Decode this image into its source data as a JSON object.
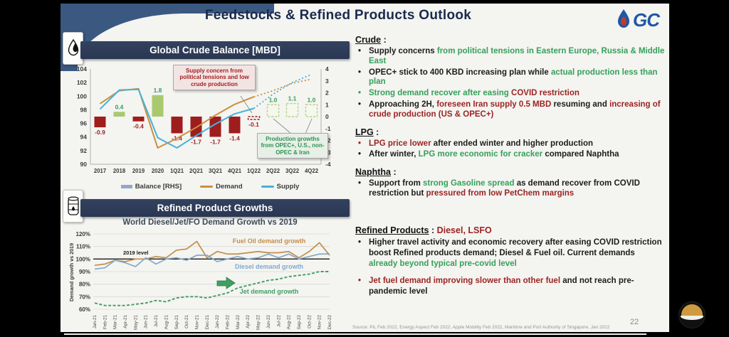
{
  "slide": {
    "title": "Feedstocks & Refined Products Outlook",
    "logo_text": "GC",
    "page_number": "22",
    "source_text": "Source: PiL Feb 2022, Energy Aspect Feb 2022, Apple Mobility Feb 2022, Maritime and Port Authority of Singapore, Jan 2022"
  },
  "colors": {
    "navy": "#2d3a57",
    "red_text": "#9b2422",
    "green_text": "#36a05a",
    "bar_red": "#9e1d1d",
    "bar_green": "#a9c96f",
    "bar_green_edge": "#b7cf8c",
    "demand": "#cc8f3e",
    "supply": "#45b2da",
    "fuel_oil": "#c28e4a",
    "diesel": "#83a9c9",
    "jet": "#3f9e62",
    "balance_swatch": "#93a7c9"
  },
  "left_column": {
    "chart1_header": "Global Crude Balance [MBD]",
    "chart2_header": "Refined Product Growths",
    "chart1_annotations": {
      "supply_concern": "Supply concern from political tensions and low crude production",
      "production_growth": "Production growths from OPEC+, U.S., non-OPEC & Iran"
    },
    "chart1_legend": [
      "Balance [RHS]",
      "Demand",
      "Supply"
    ],
    "chart2_title": "World Diesel/Jet/FO Demand Growth vs 2019",
    "chart2_ylabel": "Demand growth vs 2019",
    "chart2_level_label": "2019 level"
  },
  "chart_data": [
    {
      "type": "bar",
      "title": "Global Crude Balance [MBD]",
      "categories": [
        "2017",
        "2018",
        "2019",
        "2020",
        "1Q21",
        "2Q21",
        "3Q21",
        "4Q21",
        "1Q22",
        "2Q22",
        "3Q22",
        "4Q22"
      ],
      "left_axis": {
        "min": 90,
        "max": 104,
        "step": 2
      },
      "right_axis": {
        "min": -4,
        "max": 4,
        "step": 1
      },
      "forecast_start_index": 8,
      "series": [
        {
          "name": "Balance [RHS]",
          "type": "bar",
          "axis": "right",
          "values": [
            -0.9,
            0.4,
            -0.4,
            1.8,
            -1.4,
            -1.7,
            -1.7,
            -1.4,
            -0.1,
            1.0,
            1.1,
            1.0
          ],
          "labels": [
            "-0.9",
            "0.4",
            "-0.4",
            "1.8",
            "-1.4",
            "-1.7",
            "-1.7",
            "-1.4",
            "-0.1",
            "1.0",
            "1.1",
            "1.0"
          ]
        },
        {
          "name": "Demand",
          "type": "line",
          "axis": "left",
          "values": [
            98.9,
            100.8,
            101.1,
            92.4,
            93.8,
            95.4,
            97.2,
            98.8,
            99.9,
            100.8,
            101.9,
            102.5
          ]
        },
        {
          "name": "Supply",
          "type": "line",
          "axis": "left",
          "values": [
            98.1,
            100.9,
            101.0,
            93.9,
            92.4,
            94.2,
            95.9,
            97.4,
            98.2,
            100.3,
            102.0,
            103.2
          ]
        }
      ]
    },
    {
      "type": "line",
      "title": "World Diesel/Jet/FO Demand Growth vs 2019",
      "xlabel": "",
      "ylabel": "Demand growth vs 2019",
      "ylim": [
        60,
        120
      ],
      "grid": true,
      "x": [
        "Jan-21",
        "Feb-21",
        "Mar-21",
        "Apr-21",
        "May-21",
        "Jun-21",
        "Jul-21",
        "Aug-21",
        "Sep-21",
        "Oct-21",
        "Nov-21",
        "Dec-21",
        "Jan-22",
        "Feb-22",
        "Mar-22",
        "Apr-22",
        "May-22",
        "Jun-22",
        "Jul-22",
        "Aug-22",
        "Sep-22",
        "Oct-22",
        "Nov-22",
        "Dec-22"
      ],
      "series": [
        {
          "name": "Fuel Oil demand growth",
          "values": [
            95,
            96,
            99,
            98,
            100,
            100,
            102,
            101,
            107,
            108,
            114,
            101,
            106,
            104,
            104,
            105,
            106,
            105,
            105,
            106,
            101,
            106,
            113,
            103
          ]
        },
        {
          "name": "Diesel demand growth",
          "values": [
            92,
            93,
            99,
            97,
            94,
            101,
            96,
            100,
            101,
            99,
            103,
            103,
            98,
            100,
            102,
            100,
            101,
            104,
            101,
            104,
            100,
            102,
            104,
            104
          ]
        },
        {
          "name": "Jet demand growth",
          "values": [
            65,
            63,
            63,
            63,
            64,
            65,
            67,
            66,
            69,
            70,
            70,
            69,
            71,
            73,
            77,
            79,
            81,
            83,
            84,
            86,
            87,
            88,
            90,
            90
          ]
        }
      ],
      "annotations": [
        "2019 level"
      ]
    }
  ],
  "right_column": {
    "sections": [
      {
        "id": "crude",
        "block": "top",
        "heading": "Crude",
        "heading_rest": [
          {
            "t": " :",
            "c": "k"
          }
        ],
        "bullets": [
          {
            "dot": "k",
            "segs": [
              {
                "t": "Supply concerns ",
                "c": "k"
              },
              {
                "t": "from political tensions in Eastern Europe, Russia & Middle East",
                "c": "g"
              }
            ]
          },
          {
            "dot": "k",
            "segs": [
              {
                "t": "OPEC+ stick to 400 KBD increasing plan while ",
                "c": "k"
              },
              {
                "t": "actual production less than plan",
                "c": "g"
              }
            ]
          },
          {
            "dot": "g",
            "segs": [
              {
                "t": "Strong demand recover after easing ",
                "c": "g"
              },
              {
                "t": "COVID restriction",
                "c": "r"
              }
            ]
          },
          {
            "dot": "k",
            "segs": [
              {
                "t": "Approaching 2H, ",
                "c": "k"
              },
              {
                "t": "foreseen Iran supply 0.5 MBD ",
                "c": "r"
              },
              {
                "t": "resuming and ",
                "c": "k"
              },
              {
                "t": "increasing of crude production (US & OPEC+)",
                "c": "r"
              }
            ]
          }
        ]
      },
      {
        "id": "lpg",
        "block": "top",
        "heading": "LPG",
        "heading_rest": [
          {
            "t": " :",
            "c": "k"
          }
        ],
        "bullets": [
          {
            "dot": "r",
            "segs": [
              {
                "t": "LPG price lower ",
                "c": "r"
              },
              {
                "t": "after ended winter and higher production",
                "c": "k"
              }
            ]
          },
          {
            "dot": "k",
            "segs": [
              {
                "t": "After winter, ",
                "c": "k"
              },
              {
                "t": "LPG more economic for cracker ",
                "c": "g"
              },
              {
                "t": "compared Naphtha",
                "c": "k"
              }
            ]
          }
        ]
      },
      {
        "id": "naphtha",
        "block": "top",
        "heading": "Naphtha",
        "heading_rest": [
          {
            "t": " :",
            "c": "k"
          }
        ],
        "bullets": [
          {
            "dot": "k",
            "segs": [
              {
                "t": "Support from ",
                "c": "k"
              },
              {
                "t": "strong Gasoline spread ",
                "c": "g"
              },
              {
                "t": "as demand recover from COVID restriction but ",
                "c": "k"
              },
              {
                "t": "pressured from low PetChem margins",
                "c": "r"
              }
            ]
          }
        ]
      },
      {
        "id": "refined-products",
        "block": "bottom",
        "heading": "Refined Products",
        "heading_rest": [
          {
            "t": " : ",
            "c": "k"
          },
          {
            "t": "Diesel, LSFO",
            "c": "r"
          }
        ],
        "bullets": [
          {
            "dot": "k",
            "segs": [
              {
                "t": "Higher travel activity and economic recovery after easing COVID restriction boost Refined products demand; Diesel & Fuel oil. Current demands ",
                "c": "k"
              },
              {
                "t": "already beyond typical pre-covid level",
                "c": "g"
              }
            ]
          },
          {
            "dot": "r",
            "segs": [
              {
                "t": "Jet fuel demand  improving slower than other fuel ",
                "c": "r"
              },
              {
                "t": "and not reach pre-pandemic level",
                "c": "k"
              }
            ]
          }
        ]
      }
    ]
  }
}
